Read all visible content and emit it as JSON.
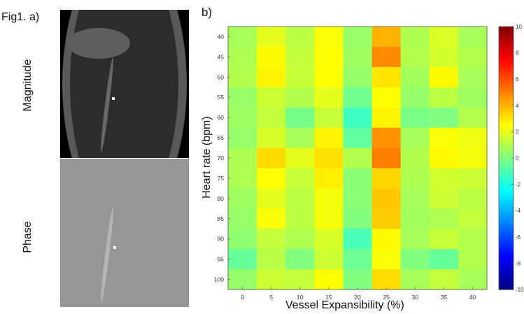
{
  "figure": {
    "fig_label": "Fig1. a)",
    "panel_b_label": "b)",
    "magnitude_label": "Magnitude",
    "phase_label": "Phase"
  },
  "colors": {
    "magnitude_background": "#000000",
    "magnitude_tissue": "#2c2c2c",
    "magnitude_vessel_wall": "#595959",
    "magnitude_ellipse": "#5e5e5e",
    "magnitude_vessel": "#686868",
    "phase_background": "#969696",
    "phase_vessel": "#b4b4b4",
    "marker": "#ffffff"
  },
  "chart_data": {
    "type": "heatmap",
    "title": "",
    "xlabel": "Vessel Expansibility (%)",
    "ylabel": "Heart rate (bpm)",
    "x": [
      0,
      5,
      10,
      15,
      20,
      25,
      30,
      35,
      40
    ],
    "y": [
      40,
      45,
      50,
      55,
      60,
      65,
      70,
      75,
      80,
      85,
      90,
      95,
      100
    ],
    "values": [
      [
        0.8,
        2.0,
        1.2,
        2.4,
        0.5,
        4.0,
        0.9,
        1.8,
        0.8
      ],
      [
        0.9,
        2.6,
        1.3,
        2.5,
        0.6,
        4.8,
        1.0,
        1.6,
        1.0
      ],
      [
        1.0,
        2.7,
        1.4,
        2.5,
        0.4,
        3.0,
        0.7,
        2.6,
        0.8
      ],
      [
        0.5,
        1.5,
        1.0,
        2.0,
        -0.3,
        2.5,
        0.4,
        1.2,
        0.6
      ],
      [
        0.6,
        1.3,
        -0.2,
        1.4,
        -1.3,
        2.7,
        -0.1,
        0.0,
        1.0
      ],
      [
        0.4,
        1.7,
        0.8,
        2.7,
        -0.6,
        4.6,
        0.8,
        2.4,
        2.2
      ],
      [
        0.9,
        3.2,
        2.0,
        3.1,
        1.0,
        5.0,
        1.0,
        2.6,
        2.3
      ],
      [
        0.9,
        2.5,
        1.4,
        2.8,
        0.2,
        3.3,
        0.9,
        1.6,
        1.5
      ],
      [
        0.6,
        2.0,
        1.2,
        2.3,
        0.2,
        3.6,
        0.8,
        1.5,
        1.2
      ],
      [
        0.5,
        2.4,
        1.2,
        2.3,
        0.0,
        3.5,
        0.7,
        0.9,
        1.3
      ],
      [
        0.3,
        1.3,
        0.9,
        1.7,
        -1.1,
        2.6,
        0.8,
        1.4,
        1.0
      ],
      [
        -0.5,
        1.1,
        0.0,
        1.5,
        -0.4,
        2.4,
        0.0,
        -0.5,
        1.0
      ],
      [
        0.4,
        1.5,
        1.3,
        2.5,
        0.0,
        3.2,
        0.8,
        1.3,
        0.8
      ]
    ],
    "colorbar": {
      "range": [
        -10,
        10
      ],
      "ticks": [
        10,
        8,
        6,
        4,
        2,
        0,
        -2,
        -4,
        -6,
        -8,
        -10
      ],
      "colormap": "jet"
    },
    "grid": false,
    "legend": "colorbar-right"
  }
}
